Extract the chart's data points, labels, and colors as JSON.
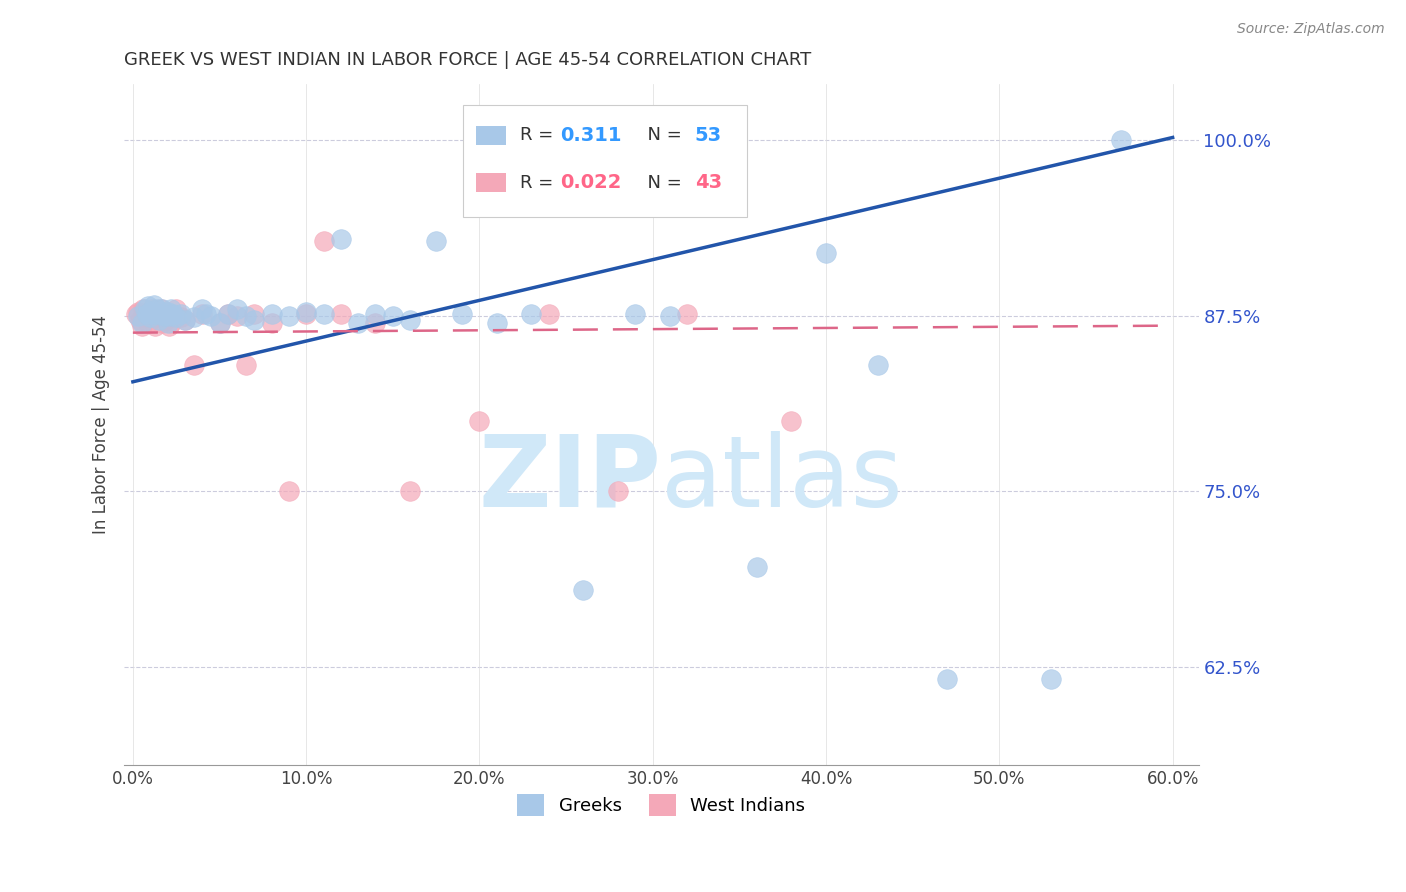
{
  "title": "GREEK VS WEST INDIAN IN LABOR FORCE | AGE 45-54 CORRELATION CHART",
  "source": "Source: ZipAtlas.com",
  "xlabel_ticks": [
    "0.0%",
    "10.0%",
    "20.0%",
    "30.0%",
    "40.0%",
    "50.0%",
    "60.0%"
  ],
  "xlabel_vals": [
    0.0,
    0.1,
    0.2,
    0.3,
    0.4,
    0.5,
    0.6
  ],
  "ylabel_ticks": [
    "62.5%",
    "75.0%",
    "87.5%",
    "100.0%"
  ],
  "ylabel_vals": [
    0.625,
    0.75,
    0.875,
    1.0
  ],
  "xlim": [
    -0.005,
    0.615
  ],
  "ylim": [
    0.555,
    1.04
  ],
  "blue_R": 0.311,
  "blue_N": 53,
  "pink_R": 0.022,
  "pink_N": 43,
  "blue_color": "#A8C8E8",
  "pink_color": "#F4A8B8",
  "trend_blue": "#2255AA",
  "trend_pink": "#DD6688",
  "watermark_color": "#D0E8F8",
  "ylabel": "In Labor Force | Age 45-54",
  "blue_scatter_x": [
    0.003,
    0.005,
    0.007,
    0.008,
    0.009,
    0.01,
    0.01,
    0.012,
    0.013,
    0.014,
    0.015,
    0.016,
    0.017,
    0.018,
    0.02,
    0.02,
    0.021,
    0.022,
    0.023,
    0.025,
    0.028,
    0.03,
    0.035,
    0.04,
    0.042,
    0.045,
    0.05,
    0.055,
    0.06,
    0.065,
    0.07,
    0.08,
    0.09,
    0.1,
    0.11,
    0.12,
    0.13,
    0.14,
    0.15,
    0.16,
    0.175,
    0.19,
    0.21,
    0.23,
    0.26,
    0.29,
    0.31,
    0.36,
    0.4,
    0.43,
    0.47,
    0.53,
    0.57
  ],
  "blue_scatter_y": [
    0.875,
    0.87,
    0.88,
    0.876,
    0.882,
    0.878,
    0.874,
    0.883,
    0.876,
    0.88,
    0.872,
    0.876,
    0.88,
    0.875,
    0.878,
    0.87,
    0.875,
    0.88,
    0.876,
    0.874,
    0.876,
    0.872,
    0.874,
    0.88,
    0.876,
    0.875,
    0.87,
    0.876,
    0.88,
    0.875,
    0.872,
    0.876,
    0.875,
    0.878,
    0.876,
    0.93,
    0.87,
    0.876,
    0.875,
    0.872,
    0.928,
    0.876,
    0.87,
    0.876,
    0.68,
    0.876,
    0.875,
    0.696,
    0.92,
    0.84,
    0.616,
    0.616,
    1.0
  ],
  "pink_scatter_x": [
    0.002,
    0.003,
    0.004,
    0.005,
    0.006,
    0.007,
    0.008,
    0.009,
    0.01,
    0.011,
    0.012,
    0.013,
    0.014,
    0.015,
    0.016,
    0.017,
    0.018,
    0.019,
    0.02,
    0.021,
    0.022,
    0.025,
    0.028,
    0.03,
    0.035,
    0.04,
    0.05,
    0.055,
    0.06,
    0.065,
    0.07,
    0.08,
    0.09,
    0.1,
    0.11,
    0.12,
    0.14,
    0.16,
    0.2,
    0.24,
    0.28,
    0.32,
    0.38
  ],
  "pink_scatter_y": [
    0.876,
    0.878,
    0.872,
    0.868,
    0.88,
    0.874,
    0.876,
    0.87,
    0.876,
    0.88,
    0.875,
    0.868,
    0.874,
    0.876,
    0.88,
    0.87,
    0.875,
    0.872,
    0.876,
    0.868,
    0.87,
    0.88,
    0.874,
    0.872,
    0.84,
    0.876,
    0.87,
    0.876,
    0.875,
    0.84,
    0.876,
    0.87,
    0.75,
    0.876,
    0.928,
    0.876,
    0.87,
    0.75,
    0.8,
    0.876,
    0.75,
    0.876,
    0.8
  ],
  "blue_trend_x": [
    0.0,
    0.6
  ],
  "blue_trend_y": [
    0.828,
    1.002
  ],
  "pink_trend_x": [
    0.0,
    0.6
  ],
  "pink_trend_y": [
    0.863,
    0.868
  ]
}
